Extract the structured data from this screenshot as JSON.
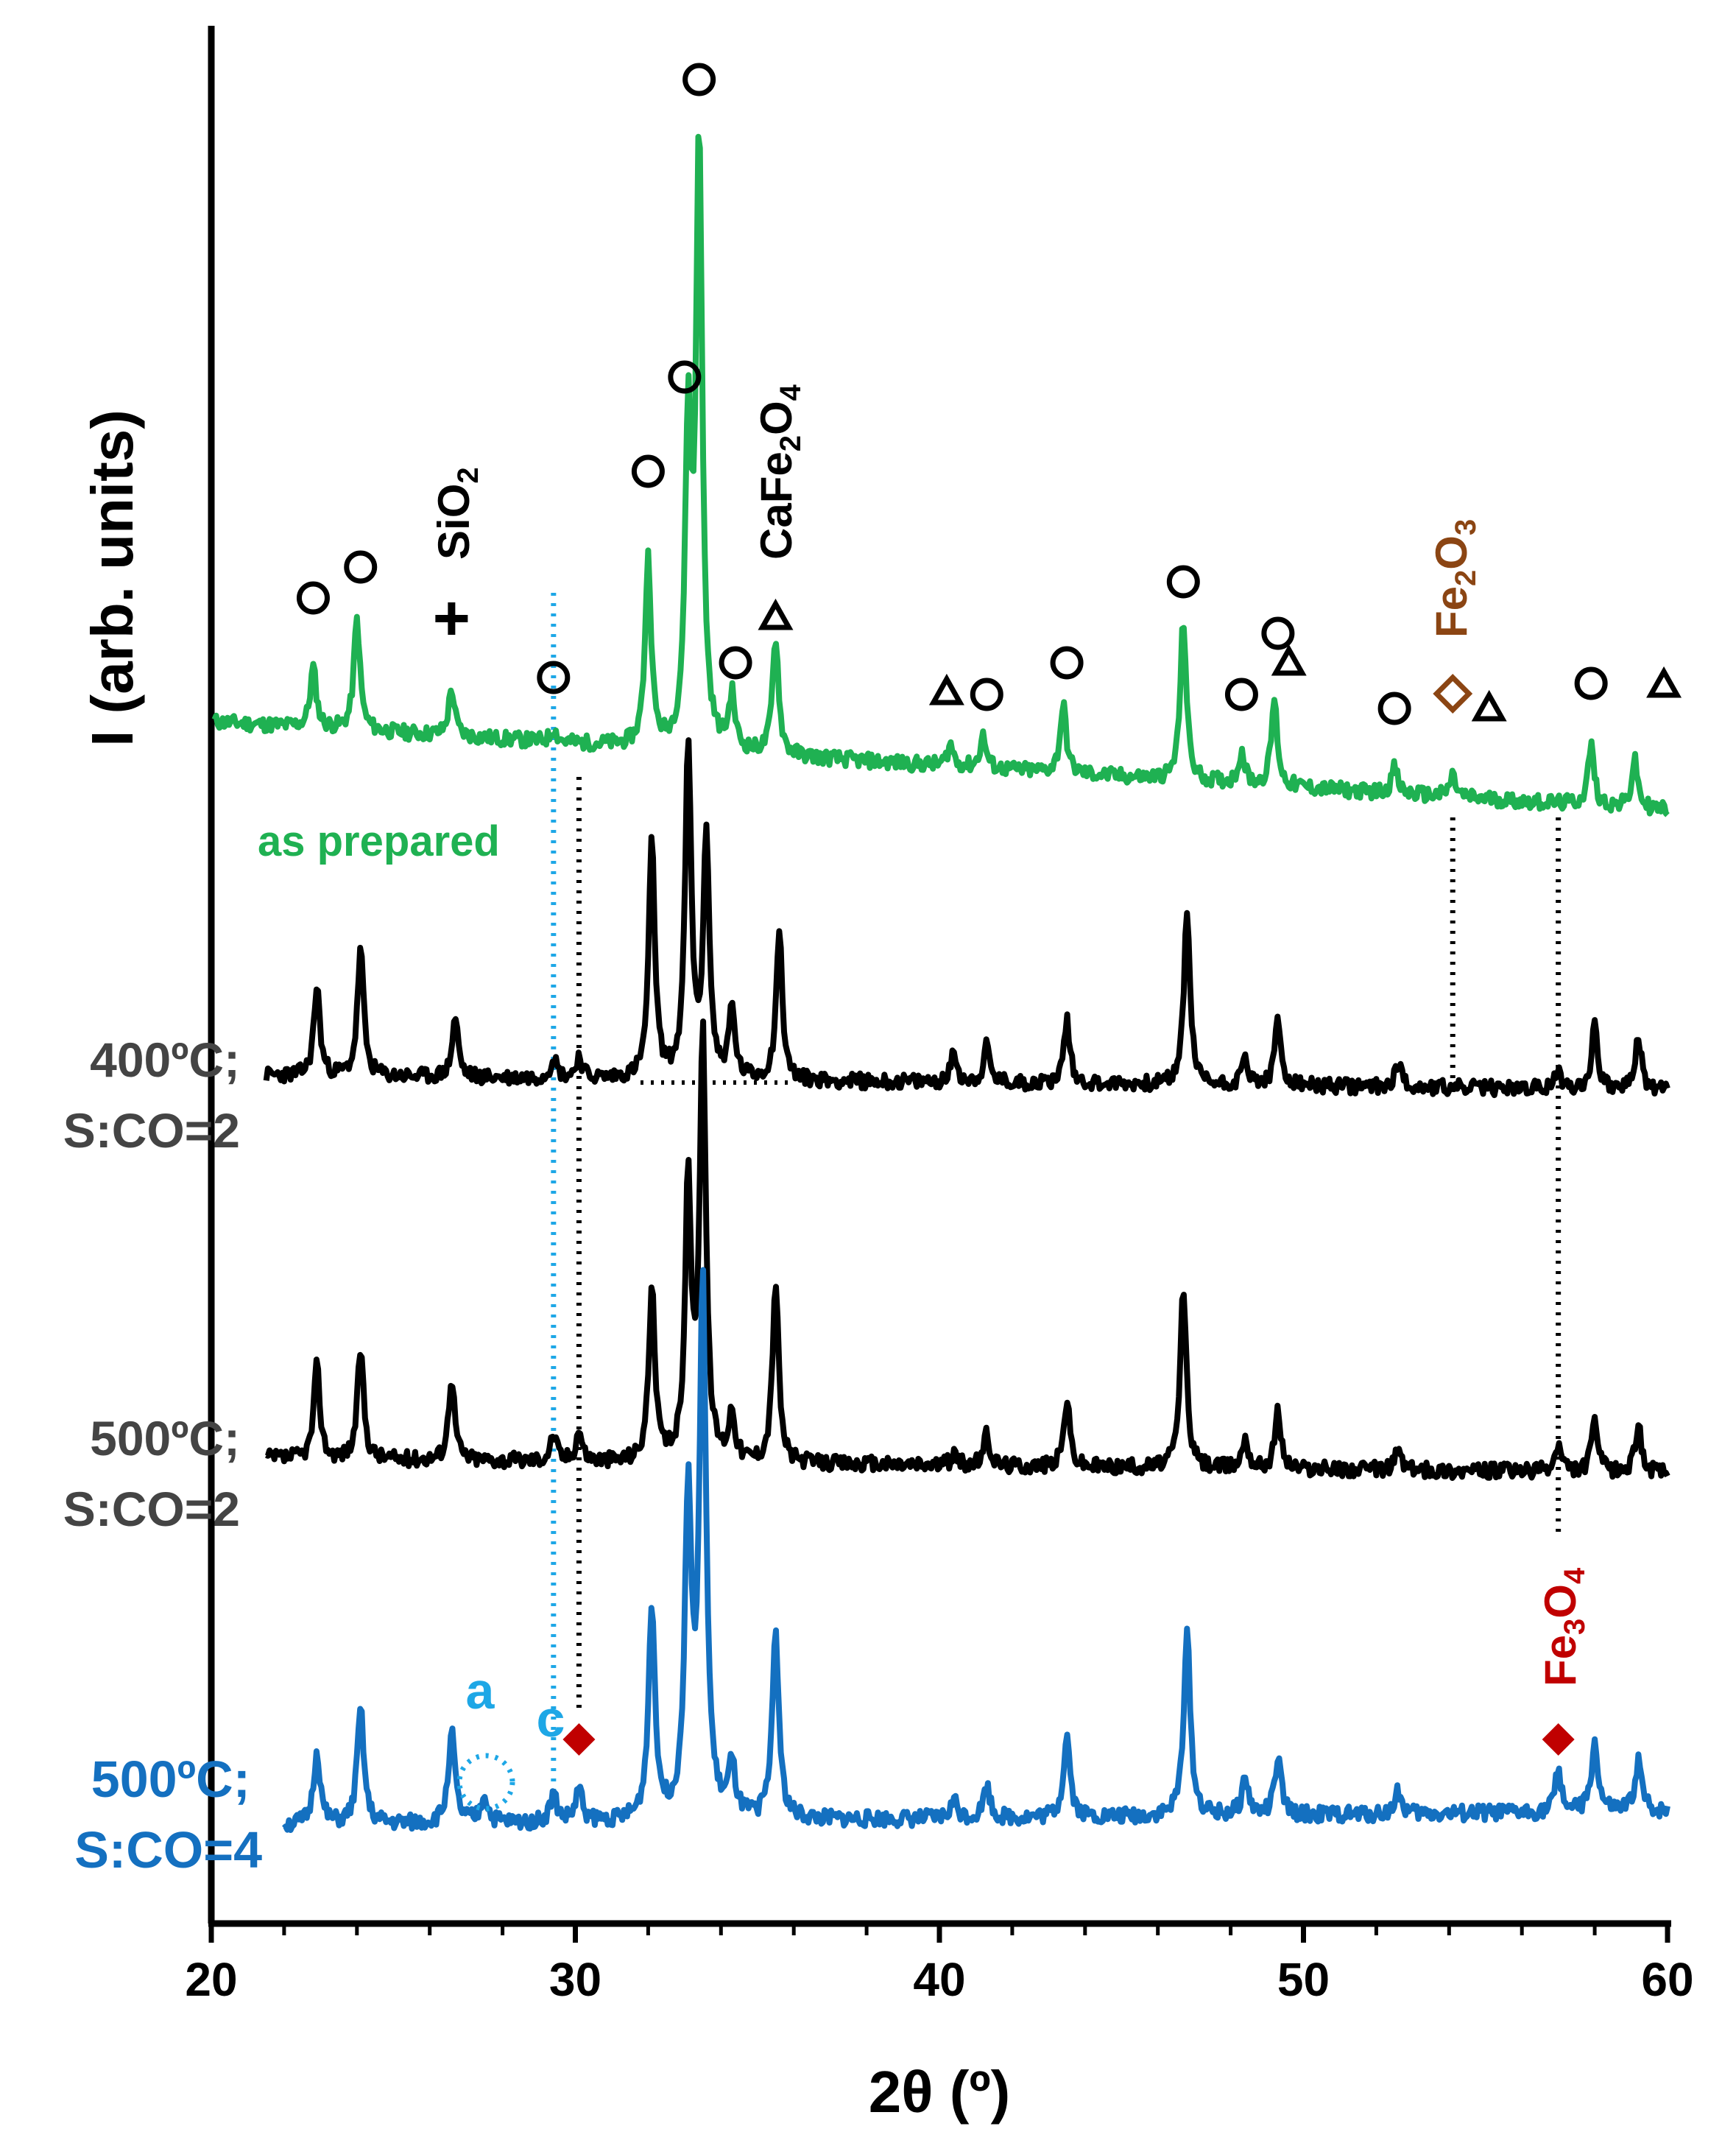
{
  "chart_data": {
    "type": "line",
    "title": "",
    "xlabel": "2θ (º)",
    "ylabel": "I (arb. units)",
    "xlim": [
      20,
      60
    ],
    "x_ticks": [
      20,
      30,
      40,
      50,
      60
    ],
    "x_tick_labels": [
      "20",
      "30",
      "40",
      "50",
      "60"
    ],
    "grid": false,
    "series": [
      {
        "name": "as prepared",
        "color": "#1fb152",
        "peaks": [
          {
            "x": 22.8,
            "h": 0.28
          },
          {
            "x": 24.0,
            "h": 0.52
          },
          {
            "x": 26.6,
            "h": 0.22
          },
          {
            "x": 29.4,
            "h": 0.06
          },
          {
            "x": 32.0,
            "h": 0.88
          },
          {
            "x": 33.1,
            "h": 1.45
          },
          {
            "x": 33.4,
            "h": 2.85
          },
          {
            "x": 34.3,
            "h": 0.25
          },
          {
            "x": 35.5,
            "h": 0.55
          },
          {
            "x": 40.3,
            "h": 0.1
          },
          {
            "x": 41.2,
            "h": 0.15
          },
          {
            "x": 43.4,
            "h": 0.32
          },
          {
            "x": 46.7,
            "h": 0.75
          },
          {
            "x": 48.3,
            "h": 0.15
          },
          {
            "x": 49.2,
            "h": 0.4
          },
          {
            "x": 52.5,
            "h": 0.12
          },
          {
            "x": 54.1,
            "h": 0.1
          },
          {
            "x": 57.9,
            "h": 0.28
          },
          {
            "x": 59.1,
            "h": 0.22
          }
        ]
      },
      {
        "name": "400ºC; S:CO=2",
        "color": "#000000",
        "peaks": [
          {
            "x": 22.9,
            "h": 0.42
          },
          {
            "x": 24.1,
            "h": 0.6
          },
          {
            "x": 26.7,
            "h": 0.28
          },
          {
            "x": 29.4,
            "h": 0.1
          },
          {
            "x": 30.1,
            "h": 0.1
          },
          {
            "x": 32.1,
            "h": 1.1
          },
          {
            "x": 33.1,
            "h": 1.55
          },
          {
            "x": 33.6,
            "h": 1.12
          },
          {
            "x": 34.3,
            "h": 0.32
          },
          {
            "x": 35.6,
            "h": 0.7
          },
          {
            "x": 40.4,
            "h": 0.14
          },
          {
            "x": 41.3,
            "h": 0.17
          },
          {
            "x": 43.5,
            "h": 0.3
          },
          {
            "x": 46.8,
            "h": 0.82
          },
          {
            "x": 48.4,
            "h": 0.13
          },
          {
            "x": 49.3,
            "h": 0.3
          },
          {
            "x": 52.6,
            "h": 0.12
          },
          {
            "x": 57.0,
            "h": 0.08
          },
          {
            "x": 58.0,
            "h": 0.3
          },
          {
            "x": 59.2,
            "h": 0.24
          }
        ]
      },
      {
        "name": "500ºC; S:CO=2",
        "color": "#000000",
        "peaks": [
          {
            "x": 22.9,
            "h": 0.42
          },
          {
            "x": 24.1,
            "h": 0.5
          },
          {
            "x": 26.6,
            "h": 0.38
          },
          {
            "x": 29.4,
            "h": 0.12
          },
          {
            "x": 30.1,
            "h": 0.14
          },
          {
            "x": 32.1,
            "h": 0.78
          },
          {
            "x": 33.1,
            "h": 1.25
          },
          {
            "x": 33.5,
            "h": 1.95
          },
          {
            "x": 34.3,
            "h": 0.22
          },
          {
            "x": 35.5,
            "h": 0.82
          },
          {
            "x": 40.4,
            "h": 0.05
          },
          {
            "x": 41.3,
            "h": 0.14
          },
          {
            "x": 43.5,
            "h": 0.3
          },
          {
            "x": 46.7,
            "h": 0.82
          },
          {
            "x": 48.4,
            "h": 0.14
          },
          {
            "x": 49.3,
            "h": 0.26
          },
          {
            "x": 52.6,
            "h": 0.1
          },
          {
            "x": 57.0,
            "h": 0.12
          },
          {
            "x": 58.0,
            "h": 0.24
          },
          {
            "x": 59.2,
            "h": 0.22
          }
        ]
      },
      {
        "name": "500ºC; S:CO=4",
        "color": "#1470c0",
        "peaks": [
          {
            "x": 22.9,
            "h": 0.32
          },
          {
            "x": 24.1,
            "h": 0.5
          },
          {
            "x": 26.6,
            "h": 0.4
          },
          {
            "x": 27.5,
            "h": 0.12
          },
          {
            "x": 29.4,
            "h": 0.12
          },
          {
            "x": 30.1,
            "h": 0.14
          },
          {
            "x": 32.1,
            "h": 0.92
          },
          {
            "x": 33.1,
            "h": 1.4
          },
          {
            "x": 33.5,
            "h": 2.3
          },
          {
            "x": 34.3,
            "h": 0.22
          },
          {
            "x": 35.5,
            "h": 0.82
          },
          {
            "x": 40.4,
            "h": 0.08
          },
          {
            "x": 41.3,
            "h": 0.14
          },
          {
            "x": 43.5,
            "h": 0.36
          },
          {
            "x": 46.8,
            "h": 0.8
          },
          {
            "x": 48.4,
            "h": 0.16
          },
          {
            "x": 49.3,
            "h": 0.24
          },
          {
            "x": 52.6,
            "h": 0.1
          },
          {
            "x": 57.0,
            "h": 0.18
          },
          {
            "x": 58.0,
            "h": 0.3
          },
          {
            "x": 59.2,
            "h": 0.22
          }
        ]
      }
    ],
    "phase_labels": [
      {
        "text": "SiO",
        "sub": "2",
        "after": "",
        "color": "#000000"
      },
      {
        "text": "CaFe",
        "sub": "2",
        "after": "O",
        "sub2": "4",
        "color": "#000000"
      },
      {
        "text": "Fe",
        "sub": "2",
        "after": "O",
        "sub2": "3",
        "color": "#8b4513"
      },
      {
        "text": "Fe",
        "sub": "3",
        "after": "O",
        "sub2": "4",
        "color": "#c00000"
      }
    ],
    "annotations": [
      {
        "text": "a",
        "color": "#1ea7e6"
      },
      {
        "text": "c",
        "color": "#1ea7e6"
      }
    ],
    "markers": {
      "circle": [
        22.8,
        24.1,
        29.4,
        32.0,
        33.0,
        33.4,
        34.4,
        41.3,
        43.5,
        46.7,
        48.3,
        49.3,
        52.5,
        57.9
      ],
      "triangle": [
        35.5,
        40.2,
        49.6,
        55.1,
        59.9
      ],
      "plus": [
        26.6
      ],
      "diamond_open": [
        54.1
      ],
      "diamond_filled": [
        30.1,
        57.0
      ]
    },
    "reference_lines": {
      "blue_dotted_x": 29.4,
      "black_dotted_x": [
        30.1,
        54.1,
        57.0
      ]
    }
  },
  "labels": {
    "as_prepared": "as prepared",
    "s400_l1": "400ºC;",
    "s400_l2": "S:CO=2",
    "s500_l1": "500ºC;",
    "s500_l2": "S:CO=2",
    "s500b_l1": "500ºC;",
    "s500b_l2": "S:CO=4"
  },
  "colors": {
    "green": "#1fb152",
    "black": "#000000",
    "blue": "#1470c0",
    "light_blue": "#1ea7e6",
    "brown": "#8b4513",
    "red": "#c00000",
    "gray": "#444444"
  }
}
